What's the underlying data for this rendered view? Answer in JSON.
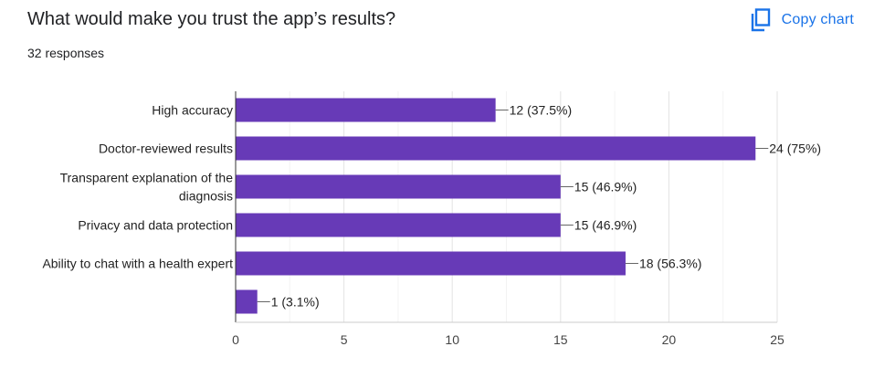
{
  "header": {
    "title": "What would make you trust the app’s results?",
    "responses": "32 responses",
    "copy_label": "Copy chart",
    "copy_icon": "copy-icon"
  },
  "colors": {
    "bar": "#673ab7",
    "accent": "#1a73e8"
  },
  "chart_data": {
    "type": "bar",
    "orientation": "horizontal",
    "categories": [
      [
        "High accuracy"
      ],
      [
        "Doctor-reviewed results"
      ],
      [
        "Transparent explanation of the",
        "diagnosis"
      ],
      [
        "Privacy and data protection"
      ],
      [
        "Ability to chat with a health expert"
      ],
      [
        ""
      ]
    ],
    "values": [
      12,
      24,
      15,
      15,
      18,
      1
    ],
    "data_labels": [
      "12 (37.5%)",
      "24 (75%)",
      "15 (46.9%)",
      "15 (46.9%)",
      "18 (56.3%)",
      "1 (3.1%)"
    ],
    "xlim": [
      0,
      25
    ],
    "xticks": [
      0,
      5,
      10,
      15,
      20,
      25
    ],
    "grid": true,
    "legend": "none"
  }
}
